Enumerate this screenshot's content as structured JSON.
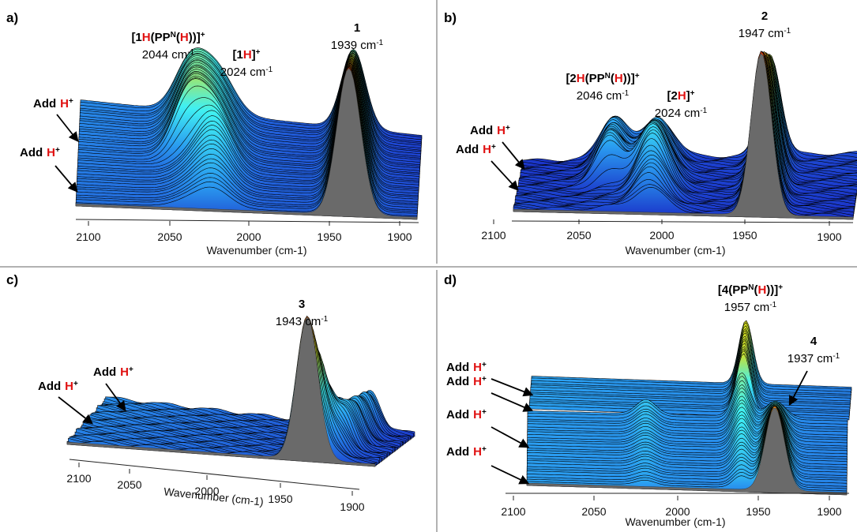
{
  "panels": [
    {
      "label": "a)",
      "axis_title": "Wavenumber (cm-1)",
      "ticks": [
        "2100",
        "2050",
        "2000",
        "1950",
        "1900"
      ],
      "annotations": [
        {
          "name": [
            "[1",
            "H",
            "(PP",
            "N",
            "(",
            "H",
            "))]",
            "+"
          ],
          "wavenumber": "2044 cm",
          "exponent": "-1"
        },
        {
          "name": [
            "[1",
            "H",
            "]",
            "+"
          ],
          "wavenumber": "2024 cm",
          "exponent": "-1"
        },
        {
          "name": [
            "1"
          ],
          "wavenumber": "1939 cm",
          "exponent": "-1"
        }
      ],
      "arrows": [
        {
          "text": "Add",
          "ion": "H",
          "charge": "+"
        },
        {
          "text": "Add",
          "ion": "H",
          "charge": "+"
        }
      ]
    },
    {
      "label": "b)",
      "axis_title": "Wavenumber (cm-1)",
      "ticks": [
        "2100",
        "2050",
        "2000",
        "1950",
        "1900"
      ],
      "annotations": [
        {
          "name": [
            "[2",
            "H",
            "(PP",
            "N",
            "(",
            "H",
            "))]",
            "+"
          ],
          "wavenumber": "2046 cm",
          "exponent": "-1"
        },
        {
          "name": [
            "[2",
            "H",
            "]",
            "+"
          ],
          "wavenumber": "2024 cm",
          "exponent": "-1"
        },
        {
          "name": [
            "2"
          ],
          "wavenumber": "1947 cm",
          "exponent": "-1"
        }
      ],
      "arrows": [
        {
          "text": "Add",
          "ion": "H",
          "charge": "+"
        },
        {
          "text": "Add",
          "ion": "H",
          "charge": "+"
        }
      ]
    },
    {
      "label": "c)",
      "axis_title": "Wavenumber (cm-1)",
      "ticks": [
        "2100",
        "2050",
        "2000",
        "1950",
        "1900"
      ],
      "annotations": [
        {
          "name": [
            "3"
          ],
          "wavenumber": "1943 cm",
          "exponent": "-1"
        }
      ],
      "arrows": [
        {
          "text": "Add",
          "ion": "H",
          "charge": "+"
        },
        {
          "text": "Add",
          "ion": "H",
          "charge": "+"
        }
      ]
    },
    {
      "label": "d)",
      "axis_title": "Wavenumber (cm-1)",
      "ticks": [
        "2100",
        "2050",
        "2000",
        "1950",
        "1900"
      ],
      "annotations": [
        {
          "name": [
            "[4(PP",
            "N",
            "(",
            "H",
            "))]",
            "+"
          ],
          "wavenumber": "1957 cm",
          "exponent": "-1"
        },
        {
          "name": [
            "4"
          ],
          "wavenumber": "1937 cm",
          "exponent": "-1"
        }
      ],
      "arrows": [
        {
          "text": "Add",
          "ion": "H",
          "charge": "+"
        },
        {
          "text": "Add",
          "ion": "H",
          "charge": "+"
        },
        {
          "text": "Add",
          "ion": "H",
          "charge": "+"
        },
        {
          "text": "Add",
          "ion": "H",
          "charge": "+"
        }
      ]
    }
  ]
}
